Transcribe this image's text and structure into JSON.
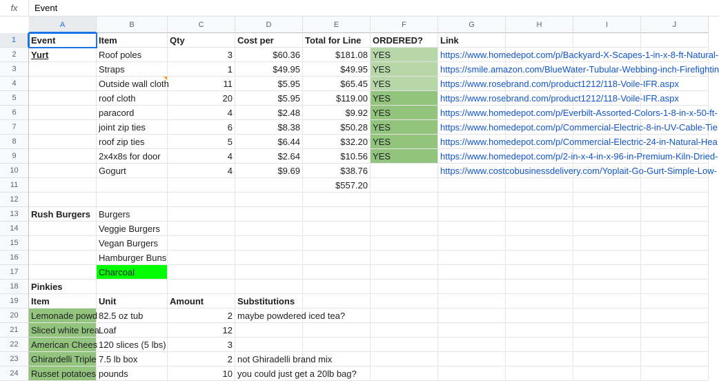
{
  "formula_bar": {
    "fx_label": "fx",
    "value": "Event"
  },
  "columns": [
    "A",
    "B",
    "C",
    "D",
    "E",
    "F",
    "G",
    "H",
    "I",
    "J"
  ],
  "selected_col_index": 0,
  "selected_row_index": 0,
  "rows": [
    {
      "r": 1,
      "A": {
        "t": "Event",
        "bold": true,
        "sel": true
      },
      "B": {
        "t": "Item",
        "bold": true
      },
      "C": {
        "t": "Qty",
        "bold": true
      },
      "D": {
        "t": "Cost per",
        "bold": true
      },
      "E": {
        "t": "Total for Line",
        "bold": true
      },
      "F": {
        "t": "ORDERED?",
        "bold": true
      },
      "G": {
        "t": "Link",
        "bold": true
      }
    },
    {
      "r": 2,
      "A": {
        "t": "Yurt",
        "bold": true,
        "underline": true
      },
      "B": {
        "t": "Roof poles"
      },
      "C": {
        "t": "3",
        "right": true
      },
      "D": {
        "t": "$60.36",
        "right": true
      },
      "E": {
        "t": "$181.08",
        "right": true
      },
      "F": {
        "t": "YES",
        "bg": "bg-light-green"
      },
      "G": {
        "t": "https://www.homedepot.com/p/Backyard-X-Scapes-1-in-x-8-ft-Natural-",
        "link": true,
        "of": true
      }
    },
    {
      "r": 3,
      "B": {
        "t": "Straps"
      },
      "C": {
        "t": "1",
        "right": true
      },
      "D": {
        "t": "$49.95",
        "right": true
      },
      "E": {
        "t": "$49.95",
        "right": true
      },
      "F": {
        "t": "YES",
        "bg": "bg-light-green"
      },
      "G": {
        "t": "https://smile.amazon.com/BlueWater-Tubular-Webbing-inch-Firefightin",
        "link": true,
        "of": true
      }
    },
    {
      "r": 4,
      "B": {
        "t": "Outside wall cloth",
        "of": true,
        "ind": true
      },
      "C": {
        "t": "11",
        "right": true
      },
      "D": {
        "t": "$5.95",
        "right": true
      },
      "E": {
        "t": "$65.45",
        "right": true
      },
      "F": {
        "t": "YES",
        "bg": "bg-light-green"
      },
      "G": {
        "t": "https://www.rosebrand.com/product1212/118-Voile-IFR.aspx",
        "link": true,
        "of": true
      }
    },
    {
      "r": 5,
      "B": {
        "t": "roof cloth"
      },
      "C": {
        "t": "20",
        "right": true
      },
      "D": {
        "t": "$5.95",
        "right": true
      },
      "E": {
        "t": "$119.00",
        "right": true
      },
      "F": {
        "t": "YES",
        "bg": "bg-green"
      },
      "G": {
        "t": "https://www.rosebrand.com/product1212/118-Voile-IFR.aspx",
        "link": true,
        "of": true
      }
    },
    {
      "r": 6,
      "B": {
        "t": "paracord"
      },
      "C": {
        "t": "4",
        "right": true
      },
      "D": {
        "t": "$2.48",
        "right": true
      },
      "E": {
        "t": "$9.92",
        "right": true
      },
      "F": {
        "t": "YES",
        "bg": "bg-green"
      },
      "G": {
        "t": "https://www.homedepot.com/p/Everbilt-Assorted-Colors-1-8-in-x-50-ft-",
        "link": true,
        "of": true
      }
    },
    {
      "r": 7,
      "B": {
        "t": "joint zip ties"
      },
      "C": {
        "t": "6",
        "right": true
      },
      "D": {
        "t": "$8.38",
        "right": true
      },
      "E": {
        "t": "$50.28",
        "right": true
      },
      "F": {
        "t": "YES",
        "bg": "bg-green"
      },
      "G": {
        "t": "https://www.homedepot.com/p/Commercial-Electric-8-in-UV-Cable-Tie",
        "link": true,
        "of": true
      }
    },
    {
      "r": 8,
      "B": {
        "t": "roof zip ties"
      },
      "C": {
        "t": "5",
        "right": true
      },
      "D": {
        "t": "$6.44",
        "right": true
      },
      "E": {
        "t": "$32.20",
        "right": true
      },
      "F": {
        "t": "YES",
        "bg": "bg-green"
      },
      "G": {
        "t": "https://www.homedepot.com/p/Commercial-Electric-24-in-Natural-Hea",
        "link": true,
        "of": true
      }
    },
    {
      "r": 9,
      "B": {
        "t": "2x4x8s for door"
      },
      "C": {
        "t": "4",
        "right": true
      },
      "D": {
        "t": "$2.64",
        "right": true
      },
      "E": {
        "t": "$10.56",
        "right": true
      },
      "F": {
        "t": "YES",
        "bg": "bg-green"
      },
      "G": {
        "t": "https://www.homedepot.com/p/2-in-x-4-in-x-96-in-Premium-Kiln-Dried-",
        "link": true,
        "of": true
      }
    },
    {
      "r": 10,
      "B": {
        "t": "Gogurt"
      },
      "C": {
        "t": "4",
        "right": true
      },
      "D": {
        "t": "$9.69",
        "right": true
      },
      "E": {
        "t": "$38.76",
        "right": true
      },
      "G": {
        "t": "https://www.costcobusinessdelivery.com/Yoplait-Go-Gurt-Simple-Low-",
        "link": true,
        "of": true
      }
    },
    {
      "r": 11,
      "E": {
        "t": "$557.20",
        "right": true
      }
    },
    {
      "r": 12
    },
    {
      "r": 13,
      "A": {
        "t": "Rush Burgers",
        "bold": true,
        "of": true
      },
      "B": {
        "t": "Burgers"
      }
    },
    {
      "r": 14,
      "B": {
        "t": "Veggie Burgers"
      }
    },
    {
      "r": 15,
      "B": {
        "t": "Vegan Burgers"
      }
    },
    {
      "r": 16,
      "B": {
        "t": "Hamburger Buns",
        "of": true
      }
    },
    {
      "r": 17,
      "B": {
        "t": "Charcoal",
        "bg": "bg-bright-green"
      }
    },
    {
      "r": 18,
      "A": {
        "t": "Pinkies",
        "bold": true
      }
    },
    {
      "r": 19,
      "A": {
        "t": "Item",
        "bold": true
      },
      "B": {
        "t": "Unit",
        "bold": true
      },
      "C": {
        "t": "Amount",
        "bold": true
      },
      "D": {
        "t": "Substitutions",
        "bold": true
      }
    },
    {
      "r": 20,
      "A": {
        "t": "Lemonade powd",
        "bg": "bg-pinkies"
      },
      "B": {
        "t": "82.5 oz tub"
      },
      "C": {
        "t": "2",
        "right": true
      },
      "D": {
        "t": "maybe powdered iced tea?",
        "of": true
      }
    },
    {
      "r": 21,
      "A": {
        "t": "Sliced white brea",
        "bg": "bg-pinkies"
      },
      "B": {
        "t": "Loaf"
      },
      "C": {
        "t": "12",
        "right": true
      }
    },
    {
      "r": 22,
      "A": {
        "t": "American Chees",
        "bg": "bg-pinkies"
      },
      "B": {
        "t": "120 slices (5 lbs)",
        "of": true
      },
      "C": {
        "t": "3",
        "right": true
      }
    },
    {
      "r": 23,
      "A": {
        "t": "Ghirardelli Triple",
        "bg": "bg-pinkies"
      },
      "B": {
        "t": "7.5 lb box"
      },
      "C": {
        "t": "2",
        "right": true
      },
      "D": {
        "t": "not Ghiradelli brand mix",
        "of": true
      }
    },
    {
      "r": 24,
      "A": {
        "t": "Russet potatoes",
        "bg": "bg-pinkies"
      },
      "B": {
        "t": "pounds"
      },
      "C": {
        "t": "10",
        "right": true
      },
      "D": {
        "t": "you could just get a 20lb bag?",
        "of": true
      }
    }
  ]
}
